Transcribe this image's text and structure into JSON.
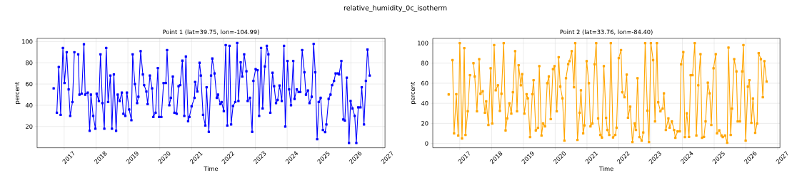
{
  "chart_data": [
    {
      "type": "line",
      "title": "Point 1 (lat=39.75, lon=-104.99)",
      "xlabel": "Time",
      "ylabel": "percent",
      "annotations": [
        "relative_humidity_0c_isotherm"
      ],
      "color": "#0000ff",
      "marker": "square",
      "grid": true,
      "xlim": [
        2016.15,
        2027.07
      ],
      "ylim": [
        0,
        103
      ],
      "xticks": [
        2017,
        2018,
        2019,
        2020,
        2021,
        2022,
        2023,
        2024,
        2025,
        2026,
        2027
      ],
      "yticks": [
        20,
        40,
        60,
        80,
        100
      ],
      "x": [
        2016.67,
        2016.72,
        2016.77,
        2016.83,
        2016.89,
        2016.96,
        2017.01,
        2017.08,
        2017.14,
        2017.19,
        2017.26,
        2017.32,
        2017.38,
        2017.44,
        2017.48,
        2017.55,
        2017.62,
        2017.66,
        2017.74,
        2017.8,
        2017.84,
        2017.91,
        2017.98,
        2018.02,
        2018.09,
        2018.14,
        2018.2,
        2018.26,
        2018.32,
        2018.38,
        2018.45,
        2018.5,
        2018.56,
        2018.63,
        2018.68,
        2018.74,
        2018.81,
        2018.86,
        2018.92,
        2018.97,
        2019.04,
        2019.11,
        2019.15,
        2019.22,
        2019.29,
        2019.33,
        2019.4,
        2019.47,
        2019.51,
        2019.58,
        2019.62,
        2019.69,
        2019.76,
        2019.8,
        2019.87,
        2019.94,
        2019.98,
        2020.05,
        2020.12,
        2020.19,
        2020.23,
        2020.3,
        2020.35,
        2020.41,
        2020.46,
        2020.53,
        2020.59,
        2020.64,
        2020.71,
        2020.77,
        2020.82,
        2020.89,
        2020.93,
        2021.0,
        2021.09,
        2021.11,
        2021.18,
        2021.25,
        2021.29,
        2021.36,
        2021.43,
        2021.47,
        2021.54,
        2021.61,
        2021.65,
        2021.72,
        2021.79,
        2021.83,
        2021.9,
        2021.94,
        2022.01,
        2022.07,
        2022.12,
        2022.19,
        2022.24,
        2022.3,
        2022.37,
        2022.43,
        2022.47,
        2022.54,
        2022.59,
        2022.65,
        2022.72,
        2022.76,
        2022.83,
        2022.9,
        2022.94,
        2023.01,
        2023.07,
        2023.12,
        2023.18,
        2023.23,
        2023.3,
        2023.36,
        2023.41,
        2023.47,
        2023.54,
        2023.59,
        2023.65,
        2023.7,
        2023.76,
        2023.83,
        2023.9,
        2023.94,
        2024.01,
        2024.06,
        2024.12,
        2024.19,
        2024.23,
        2024.3,
        2024.36,
        2024.41,
        2024.47,
        2024.54,
        2024.59,
        2024.65,
        2024.7,
        2024.77,
        2024.83,
        2024.88,
        2024.94,
        2024.99,
        2025.05,
        2025.12,
        2025.19,
        2025.23,
        2025.3,
        2025.36,
        2025.41,
        2025.47,
        2025.52,
        2025.59,
        2025.63,
        2025.7,
        2025.76,
        2025.81,
        2025.87,
        2025.94,
        2025.99,
        2026.05,
        2026.12,
        2026.17,
        2026.23,
        2026.3,
        2026.34,
        2026.41,
        2026.47,
        2026.52,
        2026.59
      ],
      "values": [
        56,
        null,
        33,
        76,
        31,
        94,
        61,
        90,
        55,
        30,
        43,
        90,
        null,
        88,
        50,
        51,
        97.5,
        50,
        52,
        16,
        50,
        30,
        18,
        51,
        44,
        88,
        42,
        18,
        94,
        43,
        68,
        18,
        69,
        16,
        50,
        44,
        52,
        32,
        30,
        52,
        36,
        26,
        88,
        60,
        42,
        48,
        91,
        69,
        59,
        53,
        41,
        68,
        56,
        29,
        33,
        75,
        29,
        29,
        61,
        61,
        92,
        40,
        47,
        67,
        33,
        32,
        58,
        59,
        82,
        30,
        86,
        25,
        29,
        39,
        47,
        62,
        53,
        80,
        68,
        31,
        21,
        57,
        15,
        68,
        84,
        70,
        47,
        50,
        41,
        43,
        34.5,
        96.7,
        21,
        96,
        22,
        39.4,
        43,
        98.7,
        44,
        80.4,
        67,
        88,
        72,
        44,
        47,
        15,
        63,
        74,
        73,
        30,
        94,
        37,
        76.6,
        96,
        88,
        33,
        70.6,
        58,
        42,
        45,
        58.6,
        44,
        96,
        20,
        81.7,
        55,
        40,
        81.7,
        46,
        55,
        52.5,
        52.5,
        92,
        71,
        50,
        54,
        42,
        48,
        97.8,
        71,
        8,
        43,
        47,
        16.7,
        14.7,
        22,
        46,
        50,
        59,
        63,
        70,
        70,
        69,
        81.7,
        26.7,
        25.6,
        66,
        4.6,
        44,
        37,
        30,
        4.6,
        38,
        38,
        57,
        22,
        63,
        92.4,
        68
      ]
    },
    {
      "type": "line",
      "title": "Point 2 (lat=33.76, lon=-84.40)",
      "xlabel": "Time",
      "ylabel": "percent",
      "color": "#ffa500",
      "marker": "square",
      "grid": true,
      "xlim": [
        2016.15,
        2027.07
      ],
      "ylim": [
        -4.3,
        104.7
      ],
      "xticks": [
        2017,
        2018,
        2019,
        2020,
        2021,
        2022,
        2023,
        2024,
        2025,
        2026,
        2027
      ],
      "yticks": [
        0,
        20,
        40,
        60,
        80,
        100
      ],
      "x": [
        2016.65,
        2016.71,
        2016.77,
        2016.82,
        2016.89,
        2016.95,
        2017.0,
        2017.07,
        2017.14,
        2017.18,
        2017.25,
        2017.32,
        2017.38,
        2017.43,
        2017.47,
        2017.54,
        2017.61,
        2017.65,
        2017.72,
        2017.79,
        2017.83,
        2017.9,
        2017.97,
        2018.02,
        2018.08,
        2018.13,
        2018.2,
        2018.26,
        2018.31,
        2018.38,
        2018.44,
        2018.49,
        2018.56,
        2018.62,
        2018.67,
        2018.74,
        2018.8,
        2018.85,
        2018.92,
        2018.96,
        2019.03,
        2019.1,
        2019.14,
        2019.21,
        2019.28,
        2019.32,
        2019.39,
        2019.46,
        2019.5,
        2019.57,
        2019.62,
        2019.68,
        2019.75,
        2019.8,
        2019.86,
        2019.93,
        2019.98,
        2020.05,
        2020.11,
        2020.16,
        2020.23,
        2020.29,
        2020.34,
        2020.41,
        2020.45,
        2020.52,
        2020.59,
        2020.63,
        2020.7,
        2020.77,
        2020.81,
        2020.88,
        2020.92,
        2020.99,
        2021.06,
        2021.11,
        2021.17,
        2021.24,
        2021.29,
        2021.35,
        2021.42,
        2021.47,
        2021.53,
        2021.6,
        2021.64,
        2021.7,
        2021.75,
        2021.82,
        2021.89,
        2021.93,
        2022.0,
        2022.07,
        2022.11,
        2022.18,
        2022.25,
        2022.29,
        2022.36,
        2022.43,
        2022.5,
        2022.54,
        2022.59,
        2022.65,
        2022.72,
        2022.77,
        2022.83,
        2022.9,
        2022.95,
        2023.01,
        2023.08,
        2023.14,
        2023.2,
        2023.24,
        2023.31,
        2023.38,
        2023.42,
        2023.48,
        2023.56,
        2023.6,
        2023.67,
        2023.74,
        2023.78,
        2023.85,
        2023.92,
        2023.96,
        2024.03,
        2024.08,
        2024.14,
        2024.21,
        2024.26,
        2024.32,
        2024.39,
        2024.44,
        2024.5,
        2024.57,
        2024.62,
        2024.68,
        2024.73,
        2024.8,
        2024.86,
        2024.91,
        2024.98,
        2025.05,
        2025.09,
        2025.16,
        2025.23,
        2025.27,
        2025.34,
        2025.41,
        2025.45,
        2025.52,
        2025.56,
        2025.63,
        2025.7,
        2025.74,
        2025.81,
        2025.88,
        2025.92,
        2025.99,
        2026.06,
        2026.11,
        2026.17,
        2026.22,
        2026.29,
        2026.35,
        2026.4,
        2026.47,
        2026.53,
        2026.58,
        2026.65
      ],
      "values": [
        48.8,
        null,
        83,
        10,
        49,
        8,
        100,
        5,
        95,
        8.5,
        32,
        68,
        null,
        80,
        66.7,
        32,
        84,
        49.5,
        52,
        30.7,
        42,
        18.4,
        75,
        19.8,
        98,
        53,
        58,
        32.5,
        49.5,
        100,
        13,
        25,
        40,
        29.7,
        51,
        92,
        32,
        78,
        58,
        69,
        29.7,
        49,
        45,
        6.4,
        49,
        63,
        13,
        15.6,
        77,
        8,
        20,
        17,
        60,
        66.7,
        24.3,
        74,
        77,
        32,
        86,
        56.6,
        45,
        2.8,
        65,
        79,
        82,
        92,
        56,
        100,
        3.5,
        30.7,
        53,
        10,
        18,
        82,
        60,
        17,
        19.8,
        78.8,
        100,
        25,
        8.5,
        5.9,
        77,
        25.5,
        13.4,
        8.5,
        100,
        6,
        8.5,
        15.8,
        85,
        93,
        51,
        46,
        68.6,
        25.7,
        36.6,
        1.4,
        20,
        13.4,
        65,
        6.4,
        2.8,
        11,
        100,
        32.8,
        1.4,
        100,
        83,
        22,
        100,
        41,
        32,
        34.7,
        50,
        13.4,
        25,
        15.8,
        22,
        13.4,
        5.7,
        12,
        12,
        78.8,
        91,
        6.4,
        30,
        6.6,
        68,
        68,
        100,
        8,
        58,
        89,
        5.7,
        6.6,
        22,
        60.6,
        50,
        18.4,
        75,
        89,
        10,
        13,
        8,
        6.4,
        8,
        0.7,
        95.5,
        8.5,
        34.7,
        84,
        71.7,
        22,
        22,
        71.7,
        98,
        2.8,
        56.6,
        63,
        20.5,
        44.8,
        10.6,
        19.8,
        90,
        84,
        46,
        82,
        61.6
      ]
    }
  ]
}
